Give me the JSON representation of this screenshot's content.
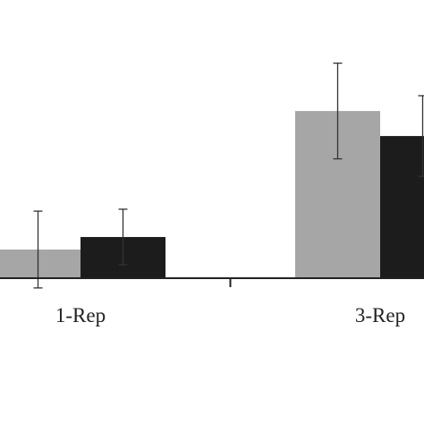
{
  "chart_data": {
    "type": "bar",
    "categories": [
      "1-Rep",
      "3-Rep"
    ],
    "series": [
      {
        "color": "#a6a6a6",
        "values": [
          10.3,
          60.1
        ],
        "errors": [
          13.8,
          17.2
        ]
      },
      {
        "color": "#1c1c1c",
        "values": [
          14.8,
          51.1
        ],
        "errors": [
          10.0,
          14.5
        ]
      }
    ],
    "ylim": [
      0,
      100
    ]
  }
}
